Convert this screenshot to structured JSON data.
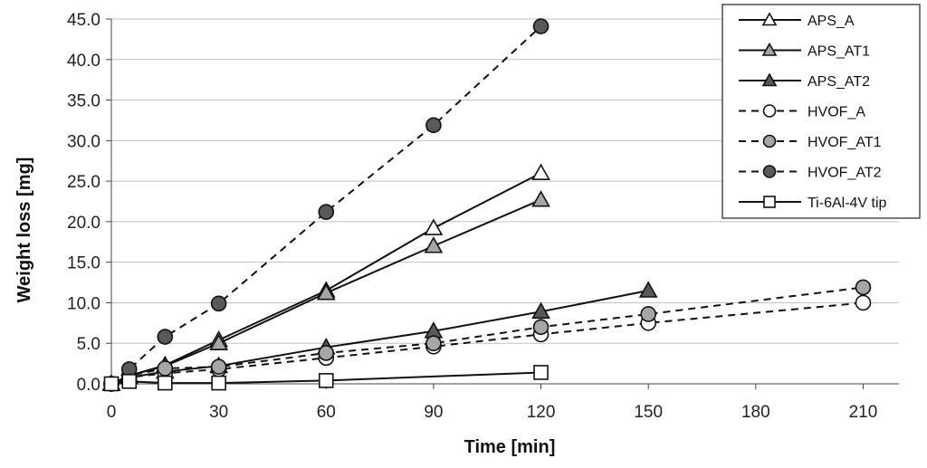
{
  "chart_data": {
    "type": "line",
    "title": "",
    "xlabel": "Time [min]",
    "ylabel": "Weight loss [mg]",
    "xlim": [
      0,
      220
    ],
    "ylim": [
      0,
      45
    ],
    "xticks": [
      0,
      30,
      60,
      90,
      120,
      150,
      180,
      210
    ],
    "xtick_labels": [
      "0",
      "30",
      "60",
      "90",
      "120",
      "150",
      "180",
      "210"
    ],
    "yticks": [
      0,
      5,
      10,
      15,
      20,
      25,
      30,
      35,
      40,
      45
    ],
    "ytick_labels": [
      "0.0",
      "5.0",
      "10.0",
      "15.0",
      "20.0",
      "25.0",
      "30.0",
      "35.0",
      "40.0",
      "45.0"
    ],
    "grid": "horizontal",
    "legend_position": "top-right",
    "series": [
      {
        "name": "APS_A",
        "line": "solid",
        "marker": "triangle",
        "fill": "#ffffff",
        "x": [
          0,
          5,
          15,
          30,
          60,
          90,
          120
        ],
        "y": [
          0.0,
          1.0,
          2.3,
          5.4,
          11.5,
          19.2,
          26.0
        ]
      },
      {
        "name": "APS_AT1",
        "line": "solid",
        "marker": "triangle",
        "fill": "#a6a6a6",
        "x": [
          0,
          5,
          15,
          30,
          60,
          90,
          120
        ],
        "y": [
          0.0,
          1.0,
          2.2,
          5.0,
          11.2,
          17.0,
          22.7
        ]
      },
      {
        "name": "APS_AT2",
        "line": "solid",
        "marker": "triangle",
        "fill": "#595959",
        "x": [
          0,
          5,
          15,
          30,
          60,
          90,
          120,
          150
        ],
        "y": [
          0.0,
          0.8,
          1.5,
          2.2,
          4.5,
          6.5,
          8.9,
          11.5
        ]
      },
      {
        "name": "HVOF_A",
        "line": "dashed",
        "marker": "circle",
        "fill": "#ffffff",
        "x": [
          0,
          5,
          15,
          30,
          60,
          90,
          120,
          150,
          210
        ],
        "y": [
          0.0,
          0.8,
          1.3,
          1.8,
          3.2,
          4.6,
          6.1,
          7.5,
          10.0
        ]
      },
      {
        "name": "HVOF_AT1",
        "line": "dashed",
        "marker": "circle",
        "fill": "#a6a6a6",
        "x": [
          0,
          5,
          15,
          30,
          60,
          90,
          120,
          150,
          210
        ],
        "y": [
          0.0,
          1.0,
          1.9,
          2.1,
          3.8,
          5.0,
          7.0,
          8.6,
          11.9
        ]
      },
      {
        "name": "HVOF_AT2",
        "line": "dashed",
        "marker": "circle",
        "fill": "#595959",
        "x": [
          0,
          5,
          15,
          30,
          60,
          90,
          120
        ],
        "y": [
          0.0,
          1.8,
          5.8,
          9.9,
          21.2,
          31.9,
          44.1
        ]
      },
      {
        "name": "Ti-6Al-4V tip",
        "line": "solid",
        "marker": "square",
        "fill": "#ffffff",
        "x": [
          0,
          5,
          15,
          30,
          60,
          120
        ],
        "y": [
          0.0,
          0.3,
          0.1,
          0.1,
          0.4,
          1.4
        ]
      }
    ]
  }
}
